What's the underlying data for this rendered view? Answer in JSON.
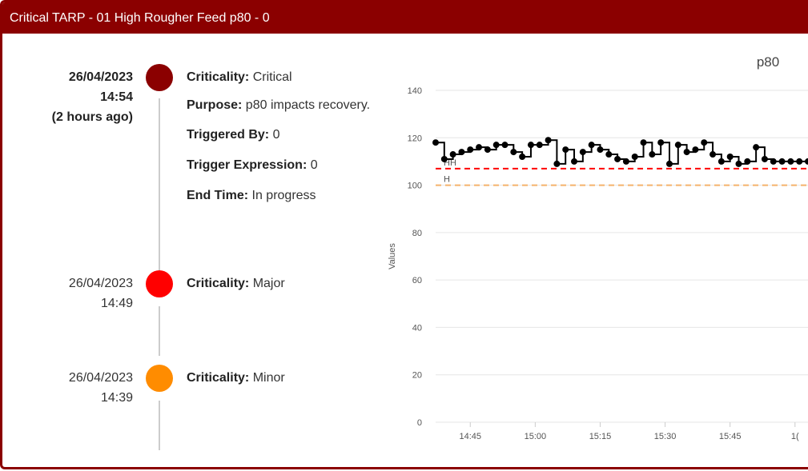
{
  "header": {
    "title": "Critical TARP - 01 High Rougher Feed p80 - 0"
  },
  "timeline": [
    {
      "date": "26/04/2023",
      "time": "14:54",
      "ago": "(2 hours ago)",
      "color": "#8b0000",
      "details": [
        {
          "key": "Criticality:",
          "value": "Critical"
        },
        {
          "key": "Purpose:",
          "value": "p80 impacts recovery."
        },
        {
          "key": "Triggered By:",
          "value": "0"
        },
        {
          "key": "Trigger Expression:",
          "value": "0"
        },
        {
          "key": "End Time:",
          "value": "In progress"
        }
      ]
    },
    {
      "date": "26/04/2023",
      "time": "14:49",
      "color": "#ff0000",
      "details": [
        {
          "key": "Criticality:",
          "value": "Major"
        }
      ]
    },
    {
      "date": "26/04/2023",
      "time": "14:39",
      "color": "#ff8c00",
      "details": [
        {
          "key": "Criticality:",
          "value": "Minor"
        }
      ]
    }
  ],
  "chart_data": {
    "type": "line",
    "title": "p80",
    "ylabel": "Values",
    "xlabel": "",
    "ylim": [
      0,
      140
    ],
    "yticks": [
      0,
      20,
      40,
      60,
      80,
      100,
      120,
      140
    ],
    "xlim": [
      "14:37",
      "16:03"
    ],
    "xtick_labels": [
      "14:45",
      "15:00",
      "15:15",
      "15:30",
      "15:45",
      "1("
    ],
    "grid": true,
    "step": true,
    "series": [
      {
        "color": "#000000",
        "x": [
          "14:37",
          "14:39",
          "14:41",
          "14:43",
          "14:45",
          "14:47",
          "14:49",
          "14:51",
          "14:53",
          "14:55",
          "14:57",
          "14:59",
          "15:01",
          "15:03",
          "15:05",
          "15:07",
          "15:09",
          "15:11",
          "15:13",
          "15:15",
          "15:17",
          "15:19",
          "15:21",
          "15:23",
          "15:25",
          "15:27",
          "15:29",
          "15:31",
          "15:33",
          "15:35",
          "15:37",
          "15:39",
          "15:41",
          "15:43",
          "15:45",
          "15:47",
          "15:49",
          "15:51",
          "15:53",
          "15:55",
          "15:57",
          "15:59",
          "16:01",
          "16:03"
        ],
        "y": [
          118,
          111,
          113,
          114,
          115,
          116,
          115,
          117,
          117,
          114,
          112,
          117,
          117,
          119,
          109,
          115,
          110,
          114,
          117,
          115,
          113,
          111,
          110,
          112,
          118,
          113,
          118,
          109,
          117,
          114,
          115,
          118,
          113,
          110,
          112,
          109,
          110,
          116,
          111,
          110,
          110,
          110,
          110,
          110
        ]
      }
    ],
    "thresholds": [
      {
        "label": "HH",
        "value": 107,
        "color": "#ff0000"
      },
      {
        "label": "H",
        "value": 100,
        "color": "#f5b26b"
      }
    ]
  }
}
